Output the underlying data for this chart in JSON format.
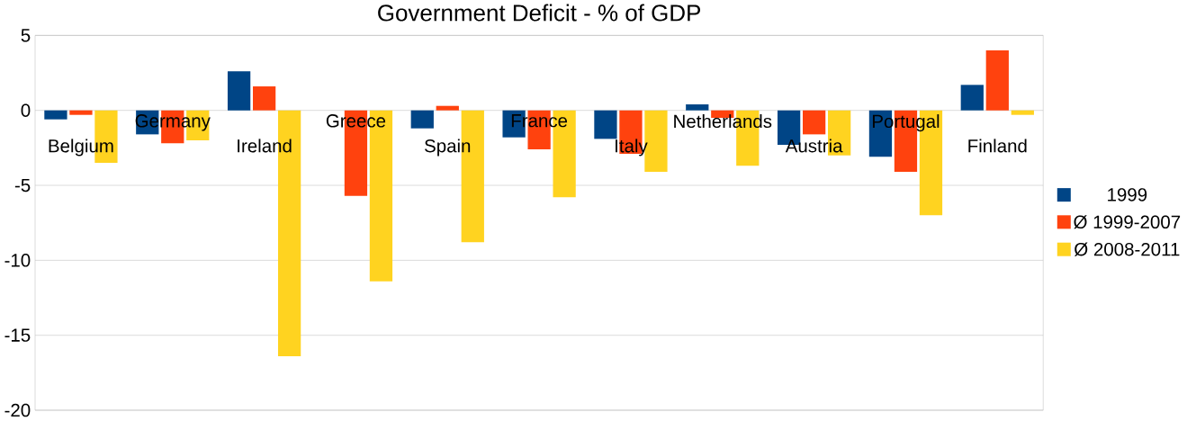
{
  "chart_data": {
    "type": "bar",
    "title": "Government Deficit - % of GDP",
    "categories": [
      "Belgium",
      "Germany",
      "Ireland",
      "Greece",
      "Spain",
      "France",
      "Italy",
      "Netherlands",
      "Austria",
      "Portugal",
      "Finland"
    ],
    "series": [
      {
        "name": "1999",
        "color": "#004586",
        "values": [
          -0.6,
          -1.6,
          2.6,
          null,
          -1.2,
          -1.8,
          -1.9,
          0.4,
          -2.3,
          -3.1,
          1.7
        ]
      },
      {
        "name": "Ø 1999-2007",
        "color": "#ff420e",
        "values": [
          -0.3,
          -2.2,
          1.6,
          -5.7,
          0.3,
          -2.6,
          -2.9,
          -0.5,
          -1.6,
          -4.1,
          4.0
        ]
      },
      {
        "name": "Ø 2008-2011",
        "color": "#ffd320",
        "values": [
          -3.5,
          -2.0,
          -16.4,
          -11.4,
          -8.8,
          -5.8,
          -4.1,
          -3.7,
          -3.0,
          -7.0,
          -0.3
        ]
      }
    ],
    "ylim": [
      -20,
      5
    ],
    "yticks": [
      -20,
      -15,
      -10,
      -5,
      0,
      5
    ],
    "grid": "y",
    "legend": "right"
  }
}
